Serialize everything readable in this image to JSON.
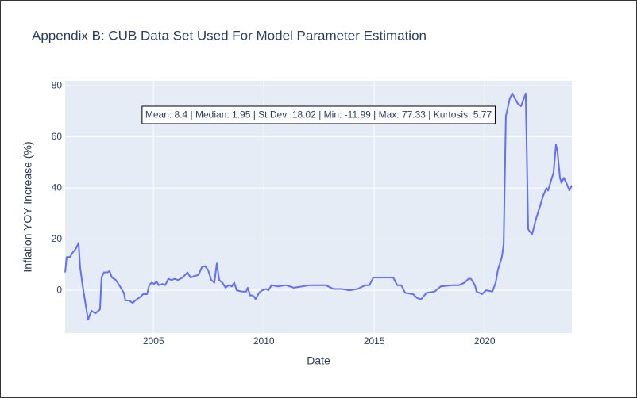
{
  "chart_data": {
    "type": "line",
    "title": "Appendix B: CUB Data Set Used For Model Parameter Estimation",
    "x_label": "Date",
    "y_label": "Inflation YOY Increase (%)",
    "annotation": "Mean: 8.4 | Median: 1.95 | St Dev :18.02 | Min: -11.99 | Max: 77.33 | Kurtosis: 5.77",
    "x": [
      2001.0,
      2001.07,
      2001.22,
      2001.36,
      2001.47,
      2001.61,
      2001.68,
      2001.79,
      2001.9,
      2002.04,
      2002.19,
      2002.37,
      2002.58,
      2002.65,
      2002.76,
      2002.91,
      2003.01,
      2003.12,
      2003.3,
      2003.45,
      2003.66,
      2003.73,
      2003.91,
      2004.06,
      2004.17,
      2004.42,
      2004.53,
      2004.71,
      2004.81,
      2004.92,
      2005.03,
      2005.14,
      2005.24,
      2005.42,
      2005.53,
      2005.68,
      2005.82,
      2005.96,
      2006.11,
      2006.32,
      2006.54,
      2006.68,
      2006.83,
      2007.04,
      2007.19,
      2007.33,
      2007.47,
      2007.62,
      2007.76,
      2007.87,
      2007.98,
      2008.12,
      2008.27,
      2008.41,
      2008.55,
      2008.66,
      2008.77,
      2009.02,
      2009.2,
      2009.27,
      2009.38,
      2009.49,
      2009.56,
      2009.63,
      2009.78,
      2009.92,
      2010.1,
      2010.21,
      2010.35,
      2010.64,
      2011.0,
      2011.36,
      2011.72,
      2012.08,
      2012.8,
      2013.16,
      2013.52,
      2013.88,
      2014.24,
      2014.6,
      2014.78,
      2014.96,
      2015.86,
      2016.04,
      2016.22,
      2016.4,
      2016.76,
      2016.94,
      2017.12,
      2017.37,
      2017.73,
      2018.01,
      2018.55,
      2018.84,
      2019.09,
      2019.27,
      2019.38,
      2019.56,
      2019.63,
      2019.88,
      2020.06,
      2020.35,
      2020.5,
      2020.6,
      2020.78,
      2020.86,
      2020.96,
      2021.14,
      2021.25,
      2021.5,
      2021.65,
      2021.86,
      2021.97,
      2022.04,
      2022.15,
      2022.33,
      2022.51,
      2022.65,
      2022.8,
      2022.87,
      2023.01,
      2023.12,
      2023.23,
      2023.3,
      2023.41,
      2023.48,
      2023.59,
      2023.7,
      2023.84,
      2023.95
    ],
    "series": [
      {
        "name": "Inflation",
        "color": "#636efa",
        "values": [
          7,
          13,
          13,
          15,
          16,
          18.5,
          9,
          2,
          -4,
          -11.5,
          -8,
          -9,
          -7.5,
          5,
          7,
          7,
          7.5,
          5,
          4,
          2,
          -1,
          -4,
          -4,
          -5,
          -4,
          -2.5,
          -1.5,
          -1.5,
          2,
          3,
          2.5,
          3.5,
          2,
          2.5,
          2,
          4.5,
          4,
          4.5,
          4,
          5,
          7,
          5,
          5.5,
          6,
          9,
          9.5,
          8,
          4,
          3,
          10.5,
          4,
          3,
          1,
          2,
          1.5,
          3,
          0,
          -0.5,
          -0.5,
          1,
          -2,
          -2,
          -2.5,
          -3.5,
          -1,
          0,
          0.5,
          0,
          2,
          1.5,
          2,
          1,
          1.5,
          2,
          2,
          0.5,
          0.5,
          0,
          0.5,
          2,
          2,
          5,
          5,
          2,
          2,
          -1,
          -1.5,
          -3,
          -3.5,
          -1,
          -0.5,
          1.5,
          2,
          2,
          3,
          4.5,
          4.5,
          2,
          -0.5,
          -1.5,
          0,
          -0.5,
          3,
          8,
          13,
          18,
          68,
          75,
          77,
          73,
          72,
          77,
          24,
          23,
          22,
          28,
          33,
          37,
          40,
          39,
          43,
          46,
          57,
          54,
          44,
          42,
          44,
          42,
          39,
          41
        ]
      }
    ],
    "xlim": [
      2001.0,
      2023.95
    ],
    "xticks": [
      2005,
      2010,
      2015,
      2020
    ],
    "ylim": [
      -16.7,
      81.9
    ],
    "yticks": [
      0,
      20,
      40,
      60,
      80
    ],
    "grid": true
  }
}
